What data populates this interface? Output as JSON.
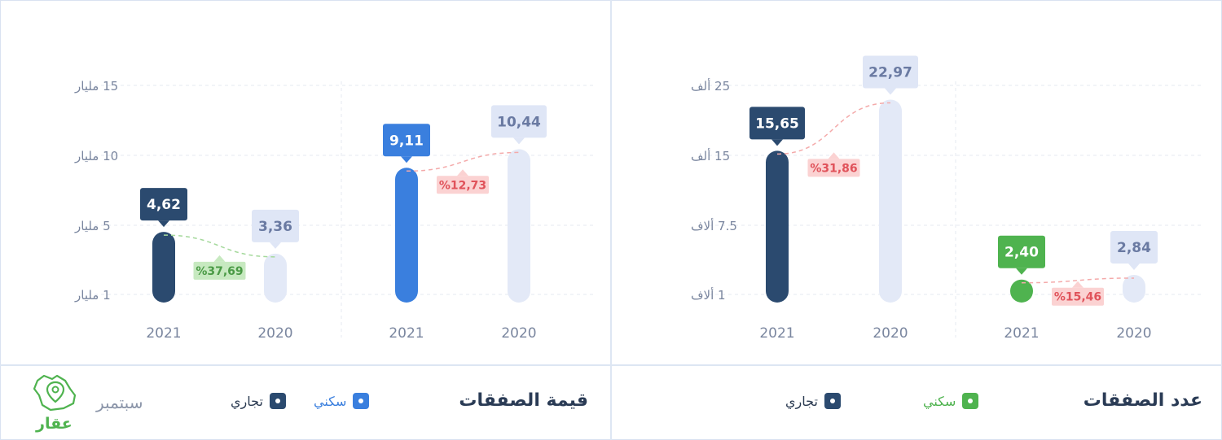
{
  "colors": {
    "commercial": "#2b4a6f",
    "residential_value": "#3a7fde",
    "residential_count": "#4fb34f",
    "prev_year": "#e3e9f7",
    "prev_label_bg": "#dfe6f6",
    "prev_label_text": "#6a7aa2",
    "pct_down_bg": "#fbd2d2",
    "pct_down_text": "#e0525a",
    "pct_up_bg": "#c7e9c0",
    "pct_up_text": "#4a9a45"
  },
  "chart_data": [
    {
      "type": "bar",
      "title": "قيمة الصفقات",
      "y_ticks": [
        "1 مليار",
        "5 مليار",
        "10 مليار",
        "15 مليار"
      ],
      "y_tick_values": [
        1,
        5,
        10,
        15
      ],
      "ylim": [
        0,
        15
      ],
      "grid": true,
      "groups": [
        {
          "name": "تجاري",
          "bars": [
            {
              "x": "2021",
              "value": 4.62,
              "label": "4,62"
            },
            {
              "x": "2020",
              "value": 3.36,
              "label": "3,36"
            }
          ],
          "change": "%37,69",
          "direction": "up"
        },
        {
          "name": "سكني",
          "bars": [
            {
              "x": "2021",
              "value": 9.11,
              "label": "9,11"
            },
            {
              "x": "2020",
              "value": 10.44,
              "label": "10,44"
            }
          ],
          "change": "%12,73",
          "direction": "down"
        }
      ],
      "legend": [
        "سكني",
        "تجاري"
      ],
      "footer_note": "سبتمبر"
    },
    {
      "type": "bar",
      "title": "عدد الصفقات",
      "y_ticks": [
        "1 ألاف",
        "7.5 ألاف",
        "15 ألف",
        "25 ألف"
      ],
      "y_tick_values": [
        1,
        7.5,
        15,
        25
      ],
      "ylim": [
        0,
        25
      ],
      "grid": true,
      "groups": [
        {
          "name": "تجاري",
          "bars": [
            {
              "x": "2021",
              "value": 15.65,
              "label": "15,65"
            },
            {
              "x": "2020",
              "value": 22.97,
              "label": "22,97"
            }
          ],
          "change": "%31,86",
          "direction": "down"
        },
        {
          "name": "سكني",
          "bars": [
            {
              "x": "2021",
              "value": 2.4,
              "label": "2,40"
            },
            {
              "x": "2020",
              "value": 2.84,
              "label": "2,84"
            }
          ],
          "change": "%15,46",
          "direction": "down"
        }
      ],
      "legend": [
        "سكني",
        "تجاري"
      ]
    }
  ],
  "left_panel": {
    "title": "قيمة الصفقات",
    "legend_residential": "سكني",
    "legend_commercial": "تجاري",
    "month": "سبتمبر",
    "logo_text": "عقار"
  },
  "right_panel": {
    "title": "عدد الصفقات",
    "legend_residential": "سكني",
    "legend_commercial": "تجاري"
  }
}
